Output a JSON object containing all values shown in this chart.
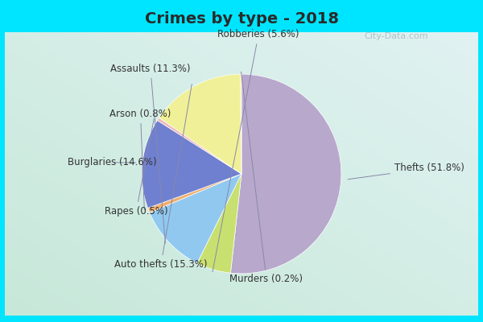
{
  "title": "Crimes by type - 2018",
  "slices": [
    {
      "label": "Thefts (51.8%)",
      "value": 51.8,
      "color": "#b8a8cc"
    },
    {
      "label": "Robberies (5.6%)",
      "value": 5.6,
      "color": "#c8e070"
    },
    {
      "label": "Assaults (11.3%)",
      "value": 11.3,
      "color": "#90c8f0"
    },
    {
      "label": "Arson (0.8%)",
      "value": 0.8,
      "color": "#f0b070"
    },
    {
      "label": "Burglaries (14.6%)",
      "value": 14.6,
      "color": "#7080d0"
    },
    {
      "label": "Rapes (0.5%)",
      "value": 0.5,
      "color": "#f0b8b8"
    },
    {
      "label": "Auto thefts (15.3%)",
      "value": 15.3,
      "color": "#f0f098"
    },
    {
      "label": "Murders (0.2%)",
      "value": 0.2,
      "color": "#f0e080"
    }
  ],
  "title_fontsize": 14,
  "title_fontweight": "bold",
  "title_color": "#2a2a2a",
  "outer_bg": "#00e5ff",
  "inner_bg_top": "#e0f5f0",
  "inner_bg_bottom": "#c8e8d8",
  "label_fontsize": 8.5,
  "label_color": "#333333",
  "watermark": "City-Data.com",
  "startangle": 90,
  "label_positions": {
    "Thefts (51.8%)": [
      1.25,
      0.0,
      "left"
    ],
    "Robberies (5.6%)": [
      0.05,
      1.18,
      "center"
    ],
    "Assaults (11.3%)": [
      -0.55,
      0.88,
      "right"
    ],
    "Arson (0.8%)": [
      -0.72,
      0.48,
      "right"
    ],
    "Burglaries (14.6%)": [
      -0.85,
      0.05,
      "right"
    ],
    "Rapes (0.5%)": [
      -0.75,
      -0.38,
      "right"
    ],
    "Auto thefts (15.3%)": [
      -0.4,
      -0.85,
      "right"
    ],
    "Murders (0.2%)": [
      0.12,
      -0.98,
      "center"
    ]
  }
}
